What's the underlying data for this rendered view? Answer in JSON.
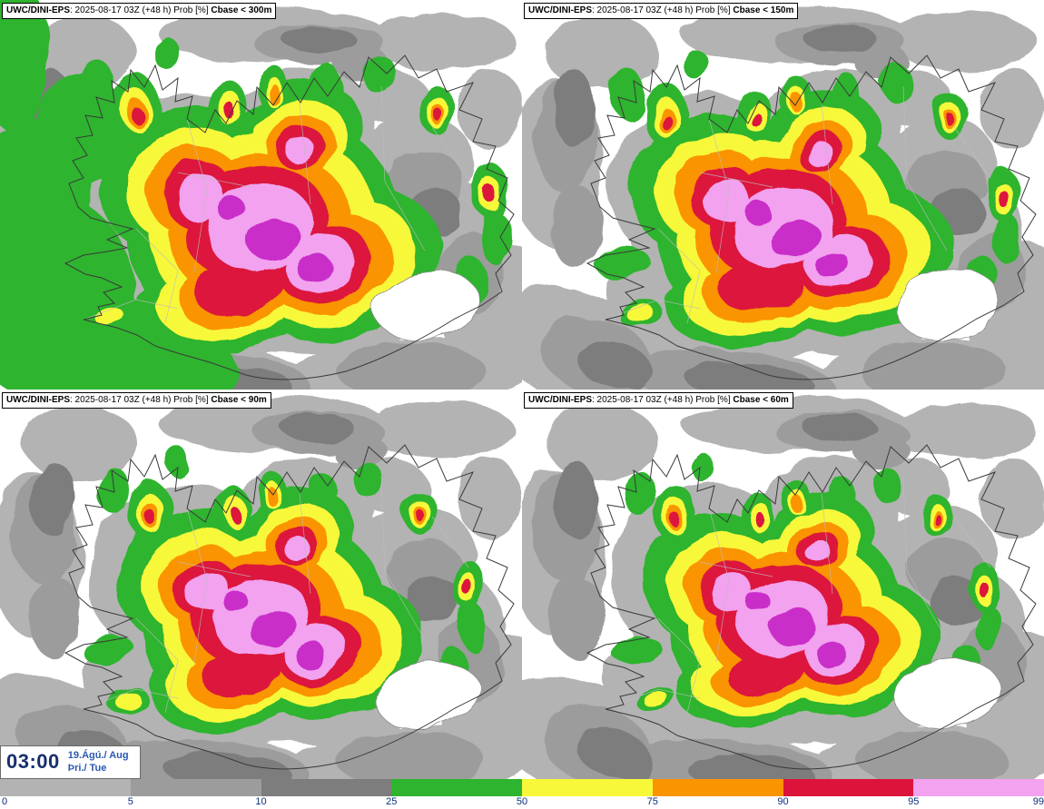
{
  "panels": [
    {
      "model": "UWC/DINI-EPS",
      "info": ": 2025-08-17 03Z (+48 h) Prob [%] ",
      "threshold": "Cbase < 300m"
    },
    {
      "model": "UWC/DINI-EPS",
      "info": ": 2025-08-17 03Z (+48 h) Prob [%] ",
      "threshold": "Cbase < 150m"
    },
    {
      "model": "UWC/DINI-EPS",
      "info": ": 2025-08-17 03Z (+48 h) Prob [%] ",
      "threshold": "Cbase < 90m"
    },
    {
      "model": "UWC/DINI-EPS",
      "info": ": 2025-08-17 03Z (+48 h) Prob [%] ",
      "threshold": "Cbase < 60m"
    }
  ],
  "footer": {
    "time": "03:00",
    "date_primary": "19.Ágú./ Aug",
    "date_secondary": "Þri./ Tue",
    "legend": {
      "values": [
        "0",
        "5",
        "10",
        "25",
        "50",
        "75",
        "90",
        "95",
        "99"
      ],
      "colors": [
        "#b3b3b3",
        "#9c9c9c",
        "#7d7d7d",
        "#2eb42e",
        "#f8f83a",
        "#fa9400",
        "#dc143c",
        "#f2a2ee"
      ],
      "over_99_color": "#c92fc9",
      "label_color": "#0b2f7a"
    }
  }
}
